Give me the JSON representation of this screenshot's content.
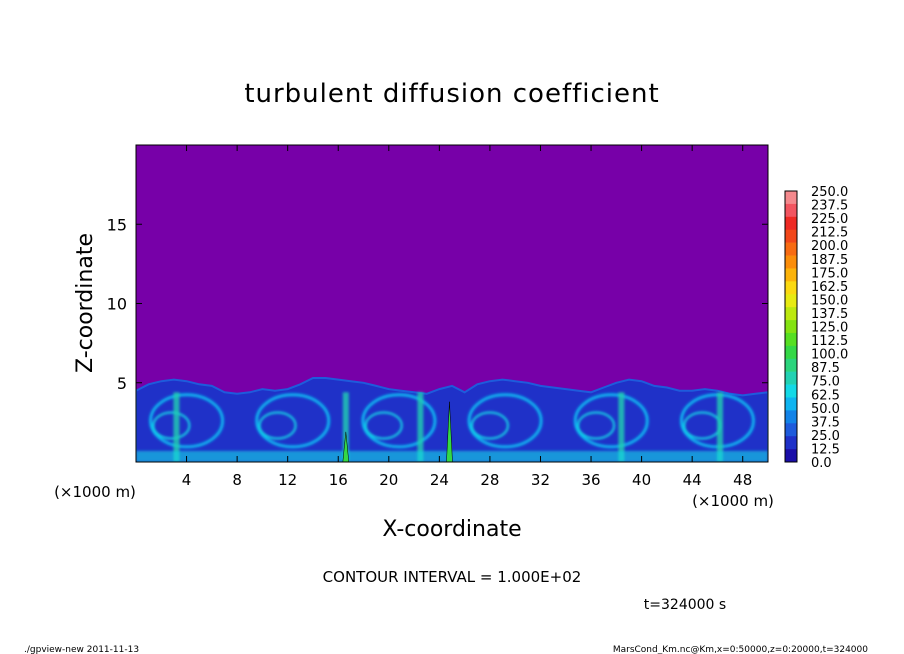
{
  "chart_data": {
    "type": "heatmap",
    "title": "turbulent diffusion coefficient",
    "xlabel": "X-coordinate",
    "ylabel": "Z-coordinate",
    "x_unit": "(×1000 m)",
    "x_unit_corner": "(×1000 m)",
    "xlim": [
      0,
      50
    ],
    "ylim": [
      0,
      20
    ],
    "x_ticks": [
      4,
      8,
      12,
      16,
      20,
      24,
      28,
      32,
      36,
      40,
      44,
      48
    ],
    "y_ticks": [
      5,
      10,
      15
    ],
    "colorbar": {
      "levels": [
        "250.0",
        "237.5",
        "225.0",
        "212.5",
        "200.0",
        "187.5",
        "175.0",
        "162.5",
        "150.0",
        "137.5",
        "125.0",
        "112.5",
        "100.0",
        "87.5",
        "75.0",
        "62.5",
        "50.0",
        "37.5",
        "25.0",
        "12.5",
        "0.0"
      ],
      "colors": [
        "#f4898d",
        "#f25560",
        "#ee2a24",
        "#f2471a",
        "#f86b12",
        "#fb8d0a",
        "#fcb30a",
        "#fbd911",
        "#e7ea12",
        "#bce80f",
        "#84e312",
        "#56df22",
        "#34d846",
        "#2bd47c",
        "#22d1b2",
        "#14d9e6",
        "#0fb4f0",
        "#1283e8",
        "#1e5bdc",
        "#1f31c8",
        "#1a0ea8"
      ],
      "background": "#7700a8"
    },
    "contour_interval": "CONTOUR INTERVAL = 1.000E+02",
    "time": "t=324000 s",
    "profile": {
      "x": [
        0,
        1,
        2,
        3,
        4,
        5,
        6,
        7,
        8,
        9,
        10,
        11,
        12,
        13,
        14,
        15,
        16,
        17,
        18,
        19,
        20,
        21,
        22,
        23,
        24,
        25,
        26,
        27,
        28,
        29,
        30,
        31,
        32,
        33,
        34,
        35,
        36,
        37,
        38,
        39,
        40,
        41,
        42,
        43,
        44,
        45,
        46,
        47,
        48,
        49,
        50
      ],
      "z_top": [
        4.5,
        4.9,
        5.1,
        5.2,
        5.1,
        4.9,
        4.8,
        4.4,
        4.3,
        4.4,
        4.6,
        4.5,
        4.6,
        4.9,
        5.3,
        5.3,
        5.2,
        5.1,
        5.0,
        4.8,
        4.6,
        4.5,
        4.4,
        4.3,
        4.6,
        4.8,
        4.4,
        4.9,
        5.1,
        5.2,
        5.1,
        5.0,
        4.8,
        4.7,
        4.6,
        4.5,
        4.4,
        4.7,
        5.0,
        5.2,
        5.1,
        4.8,
        4.7,
        4.5,
        4.5,
        4.6,
        4.5,
        4.3,
        4.2,
        4.3,
        4.4
      ],
      "features_x": [
        16.6,
        24.8
      ],
      "features_z": [
        1.9,
        3.8
      ]
    }
  },
  "footer": {
    "left": "./gpview-new  2011-11-13",
    "right": "MarsCond_Km.nc@Km,x=0:50000,z=0:20000,t=324000"
  }
}
